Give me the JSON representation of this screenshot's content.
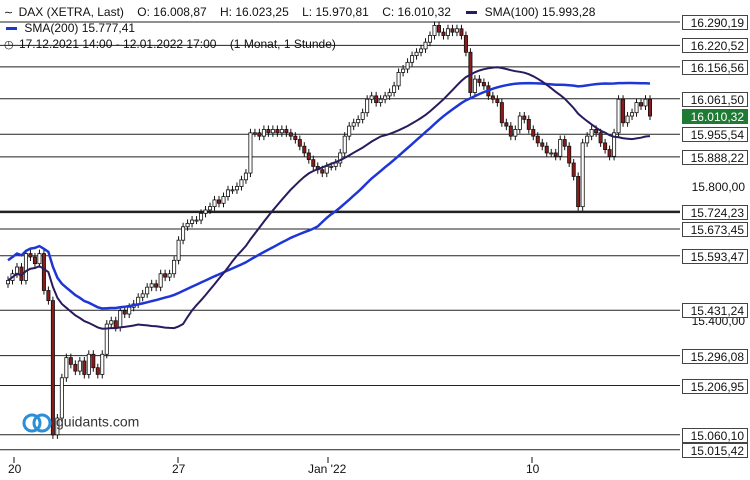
{
  "legend": {
    "instrument": "DAX (XETRA, Last)",
    "open_label": "O:",
    "open": "16.008,87",
    "high_label": "H:",
    "high": "16.023,25",
    "low_label": "L:",
    "low": "15.970,81",
    "close_label": "C:",
    "close": "16.010,32",
    "sma100_label": "SMA(100)",
    "sma100": "15.993,28",
    "sma200_label": "SMA(200)",
    "sma200": "15.777,41",
    "period": "17.12.2021 14:00 - 12.01.2022 17:00",
    "interval": "(1 Monat, 1 Stunde)"
  },
  "logo_text": "guidants.com",
  "colors": {
    "sma100": "#2a1a5e",
    "sma200": "#1f36d6",
    "candle_up": "#ffffff",
    "candle_down": "#8b1a1a",
    "current_price": "#1f7a33"
  },
  "chart_data": {
    "type": "candlestick",
    "ylim": [
      14985,
      16320
    ],
    "x_tick_labels": [
      "20",
      "27",
      "Jan '22",
      "10"
    ],
    "horizontal_levels": [
      "16.290,19",
      "16.220,52",
      "16.156,56",
      "16.061,50",
      "15.955,54",
      "15.888,22",
      "15.724,23",
      "15.673,45",
      "15.593,47",
      "15.431,24",
      "15.296,08",
      "15.206,95",
      "15.060,10",
      "15.015,42"
    ],
    "horizontal_values": [
      16290.19,
      16220.52,
      16156.56,
      16061.5,
      15955.54,
      15888.22,
      15724.23,
      15673.45,
      15593.47,
      15431.24,
      15296.08,
      15206.95,
      15060.1,
      15015.42
    ],
    "current_price_label": "16.010,32",
    "current_price": 16010.32,
    "axis_label": "15.800,00",
    "axis_value": 15800,
    "hidden_axis_label": "15.400,00",
    "hidden_axis_value": 15400,
    "closes": [
      15520,
      15540,
      15560,
      15520,
      15600,
      15590,
      15570,
      15600,
      15490,
      15460,
      15060,
      15110,
      15230,
      15290,
      15270,
      15250,
      15280,
      15240,
      15300,
      15260,
      15240,
      15300,
      15390,
      15400,
      15380,
      15430,
      15420,
      15440,
      15450,
      15470,
      15480,
      15500,
      15510,
      15500,
      15540,
      15530,
      15540,
      15580,
      15640,
      15680,
      15690,
      15700,
      15700,
      15720,
      15730,
      15740,
      15760,
      15750,
      15770,
      15790,
      15790,
      15800,
      15820,
      15840,
      15960,
      15960,
      15950,
      15970,
      15960,
      15970,
      15960,
      15970,
      15960,
      15950,
      15940,
      15920,
      15900,
      15880,
      15860,
      15850,
      15840,
      15860,
      15860,
      15870,
      15900,
      15950,
      15980,
      15990,
      16000,
      16020,
      16060,
      16070,
      16050,
      16060,
      16070,
      16080,
      16100,
      16140,
      16150,
      16170,
      16190,
      16200,
      16210,
      16230,
      16250,
      16280,
      16260,
      16250,
      16270,
      16260,
      16270,
      16250,
      16200,
      16080,
      16120,
      16110,
      16100,
      16070,
      16060,
      16050,
      15990,
      15980,
      15950,
      15970,
      16010,
      16000,
      15970,
      15950,
      15930,
      15920,
      15900,
      15900,
      15890,
      15940,
      15920,
      15870,
      15830,
      15740,
      15930,
      15950,
      15970,
      15960,
      15930,
      15910,
      15890,
      15960,
      16060,
      15990,
      16010,
      16020,
      16050,
      16040,
      16060,
      16010
    ]
  }
}
